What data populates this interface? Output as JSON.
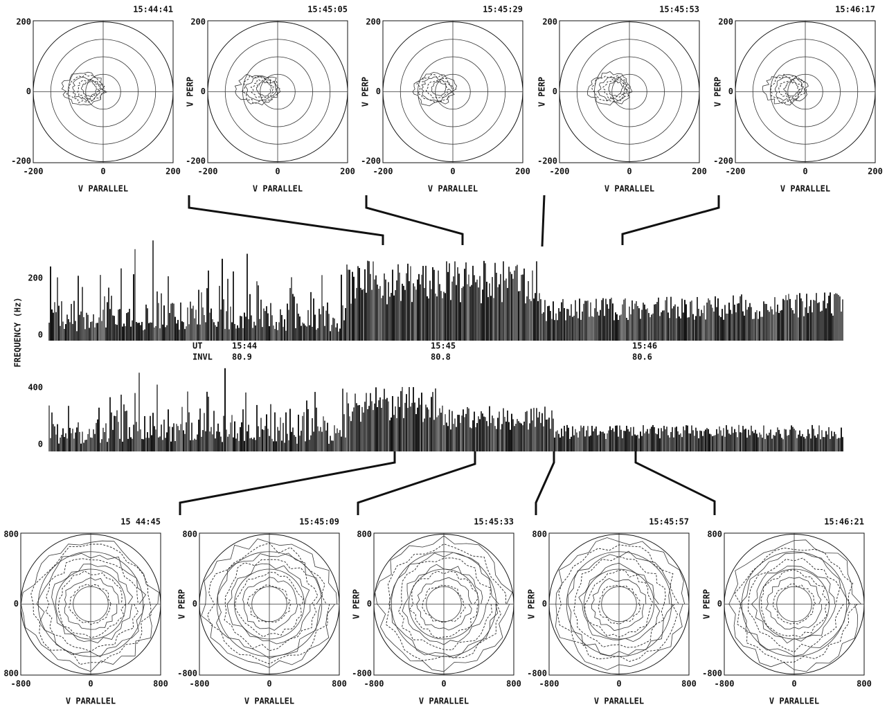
{
  "top_panels": [
    {
      "time": "15:44:41",
      "xticks": [
        "-200",
        "0",
        "200"
      ],
      "yticks": [
        "200",
        "0",
        "-200"
      ],
      "xlabel": "V PARALLEL"
    },
    {
      "time": "15:45:05",
      "xticks": [
        "-200",
        "0",
        "200"
      ],
      "yticks": [
        "200",
        "0",
        "-200"
      ],
      "xlabel": "V PARALLEL",
      "ylabel": "V PERP"
    },
    {
      "time": "15:45:29",
      "xticks": [
        "-200",
        "0",
        "200"
      ],
      "yticks": [
        "200",
        "0",
        "-200"
      ],
      "xlabel": "V PARALLEL",
      "ylabel": "V PERP"
    },
    {
      "time": "15:45:53",
      "xticks": [
        "-200",
        "0",
        "200"
      ],
      "yticks": [
        "200",
        "0",
        "-200"
      ],
      "xlabel": "V PARALLEL",
      "ylabel": "V PERP"
    },
    {
      "time": "15:46:17",
      "xticks": [
        "-200",
        "0",
        "200"
      ],
      "yticks": [
        "200",
        "0",
        "-200"
      ],
      "xlabel": "V PARALLEL",
      "ylabel": "V PERP"
    }
  ],
  "spectrogram": {
    "ylabel": "FREQUENCY (Hz)",
    "upper_ticks": [
      "200",
      "0"
    ],
    "lower_ticks": [
      "400",
      "0"
    ],
    "row_labels": [
      "UT",
      "INVL"
    ],
    "times": [
      {
        "ut": "15:44",
        "invl": "80.9"
      },
      {
        "ut": "15:45",
        "invl": "80.8"
      },
      {
        "ut": "15:46",
        "invl": "80.6"
      }
    ]
  },
  "bottom_panels": [
    {
      "time": "15 44:45",
      "xticks": [
        "-800",
        "0",
        "800"
      ],
      "yticks": [
        "800",
        "0",
        "800"
      ],
      "xlabel": "V PARALLEL"
    },
    {
      "time": "15:45:09",
      "xticks": [
        "-800",
        "0",
        "800"
      ],
      "yticks": [
        "800",
        "0",
        "-800"
      ],
      "xlabel": "V PARALLEL",
      "ylabel": "V PERP"
    },
    {
      "time": "15:45:33",
      "xticks": [
        "-800",
        "0",
        "800"
      ],
      "yticks": [
        "800",
        "0",
        "-800"
      ],
      "xlabel": "V PARALLEL",
      "ylabel": "V PERP"
    },
    {
      "time": "15:45:57",
      "xticks": [
        "-800",
        "0",
        "800"
      ],
      "yticks": [
        "800",
        "0",
        "-800"
      ],
      "xlabel": "V PARALLEL",
      "ylabel": "V PERP"
    },
    {
      "time": "15:46:21",
      "xticks": [
        "-800",
        "0",
        "800"
      ],
      "yticks": [
        "800",
        "0",
        "-800"
      ],
      "xlabel": "V PARALLEL",
      "ylabel": "V PERP"
    }
  ]
}
